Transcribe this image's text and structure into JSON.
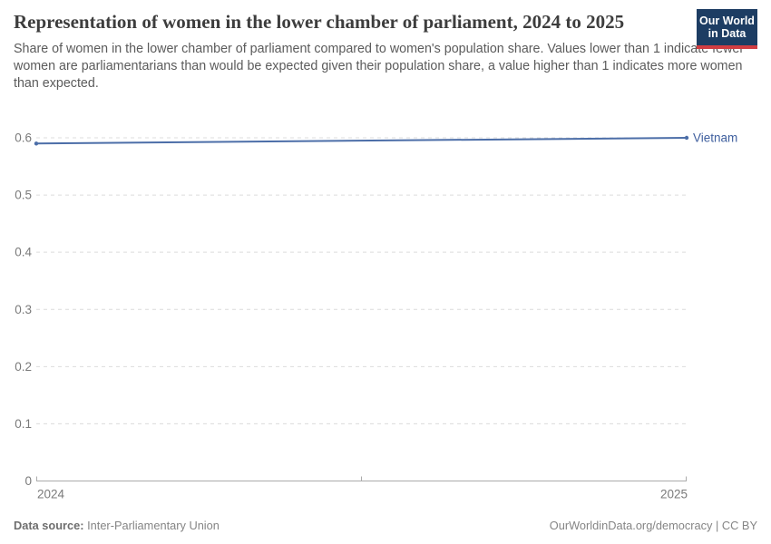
{
  "header": {
    "title": "Representation of women in the lower chamber of parliament, 2024 to 2025",
    "subtitle": "Share of women in the lower chamber of parliament compared to women's population share. Values lower than 1 indicate fewer women are parliamentarians than would be expected given their population share, a value higher than 1 indicates more women than expected.",
    "logo": {
      "line1": "Our World",
      "line2": "in Data",
      "bg_color": "#1d3d63",
      "accent_color": "#d13d42"
    }
  },
  "chart_data": {
    "type": "line",
    "title": "Representation of women in the lower chamber of parliament, 2024 to 2025",
    "x": [
      2024,
      2025
    ],
    "series": [
      {
        "name": "Vietnam",
        "values": [
          0.59,
          0.6
        ],
        "color": "#4c6ea8",
        "label_color": "#3f5f9e"
      }
    ],
    "xlim": [
      2024,
      2025
    ],
    "ylim": [
      0,
      0.6
    ],
    "xticks": [
      2024,
      2025
    ],
    "yticks": [
      0,
      0.1,
      0.2,
      0.3,
      0.4,
      0.5,
      0.6
    ],
    "grid": "horizontal-dashed",
    "legend": "entity label at right end of line",
    "xlabel": "",
    "ylabel": ""
  },
  "footer": {
    "data_source_label": "Data source:",
    "data_source_value": " Inter-Parliamentary Union",
    "attribution": "OurWorldinData.org/democracy | CC BY"
  },
  "colors": {
    "title": "#3d3d3d",
    "subtitle": "#5b5b5b",
    "gridline": "#dcdcdc",
    "axis": "#ababab",
    "tick_label": "#7a7a7a",
    "footer_text": "#858585"
  }
}
